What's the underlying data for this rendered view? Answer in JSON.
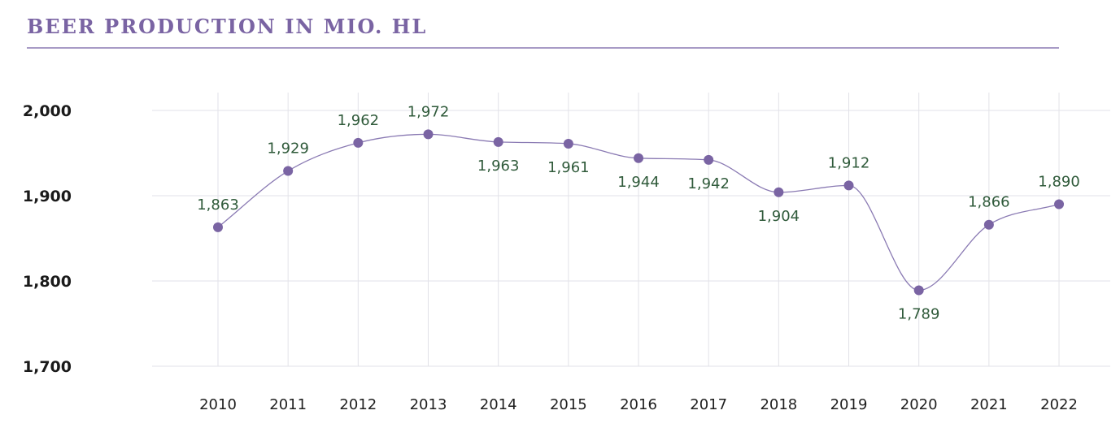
{
  "title": "BEER PRODUCTION IN MIO. HL",
  "colors": {
    "title": "#7a64a3",
    "rule": "#a89bc6",
    "line": "#8a7ab3",
    "marker": "#7a64a3",
    "data_label": "#2f5a3a",
    "grid": "#e2e2e8"
  },
  "chart_data": {
    "type": "line",
    "title": "BEER PRODUCTION IN MIO. HL",
    "xlabel": "",
    "ylabel": "",
    "x": [
      "2010",
      "2011",
      "2012",
      "2013",
      "2014",
      "2015",
      "2016",
      "2017",
      "2018",
      "2019",
      "2020",
      "2021",
      "2022"
    ],
    "series": [
      {
        "values": [
          1863,
          1929,
          1962,
          1972,
          1963,
          1961,
          1944,
          1942,
          1904,
          1912,
          1789,
          1866,
          1890
        ],
        "data_labels": [
          "1,863",
          "1,929",
          "1,962",
          "1,972",
          "1,963",
          "1,961",
          "1,944",
          "1,942",
          "1,904",
          "1,912",
          "1,789",
          "1,866",
          "1,890"
        ],
        "label_positions": [
          "above",
          "above",
          "above",
          "above",
          "below",
          "below",
          "below",
          "below",
          "below",
          "above",
          "below",
          "above",
          "above"
        ]
      }
    ],
    "ylim": [
      1700,
      2000
    ],
    "yticks": [
      1700,
      1800,
      1900,
      2000
    ],
    "ytick_labels": [
      "1,700",
      "1,800",
      "1,900",
      "2,000"
    ],
    "grid": true,
    "legend": "none"
  }
}
